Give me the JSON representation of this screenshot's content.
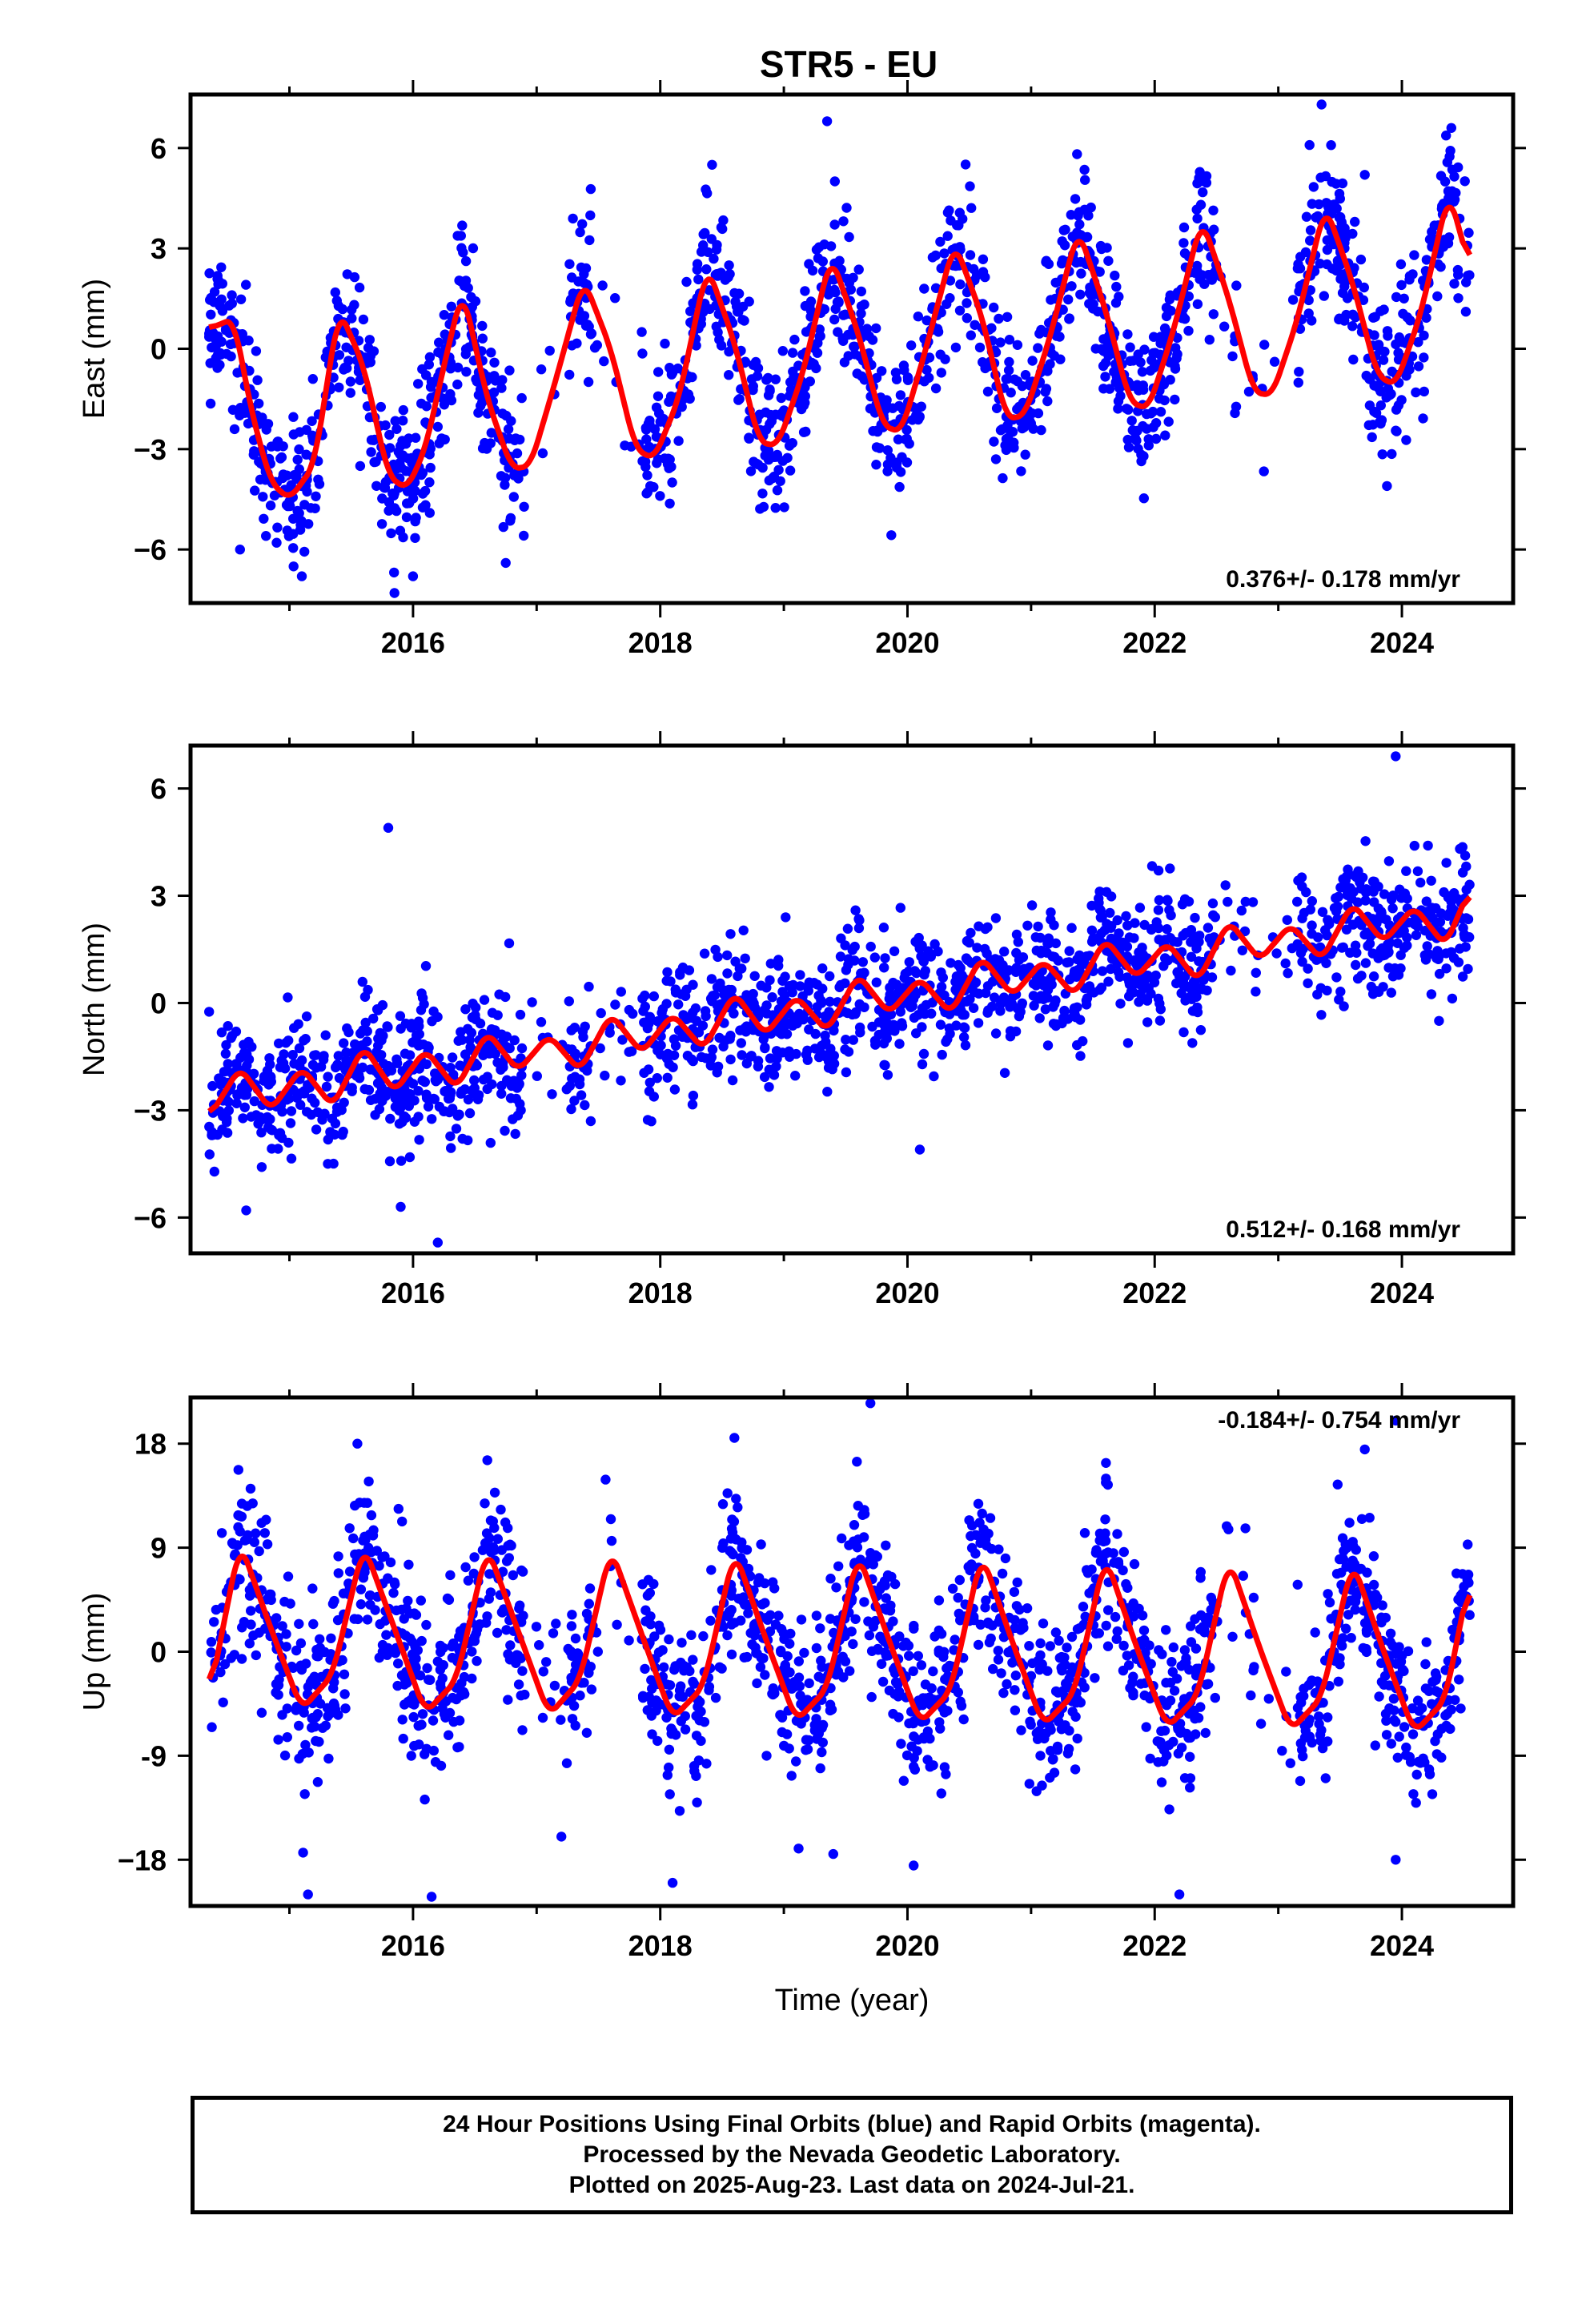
{
  "title": "STR5 - EU",
  "colors": {
    "points": "#0000ff",
    "model": "#ff0000",
    "frame": "#000000"
  },
  "chart_data": [
    {
      "type": "scatter",
      "component": "east",
      "ylabel": "East (mm)",
      "xlabel": "",
      "xlim": [
        2014.2,
        2024.9
      ],
      "ylim": [
        -7.6,
        7.6
      ],
      "yticks": [
        -6,
        -3,
        0,
        3,
        6
      ],
      "xticks": [
        2016,
        2018,
        2020,
        2022,
        2024
      ],
      "rate_text": "0.376+/- 0.178 mm/yr",
      "rate_position": "bottom-right",
      "model": {
        "series": "model",
        "x": [
          2014.35,
          2014.55,
          2014.7,
          2014.85,
          2015.0,
          2015.2,
          2015.4,
          2015.6,
          2015.8,
          2015.95,
          2016.1,
          2016.25,
          2016.4,
          2016.6,
          2016.8,
          2016.95,
          2017.15,
          2017.38,
          2017.6,
          2017.8,
          2017.95,
          2018.15,
          2018.38,
          2018.6,
          2018.8,
          2018.95,
          2019.15,
          2019.38,
          2019.6,
          2019.8,
          2019.95,
          2020.15,
          2020.38,
          2020.6,
          2020.8,
          2020.95,
          2021.15,
          2021.38,
          2021.6,
          2021.8,
          2021.95,
          2022.15,
          2022.38,
          2022.6,
          2022.8,
          2022.95,
          2023.15,
          2023.38,
          2023.6,
          2023.8,
          2023.95,
          2024.15,
          2024.38,
          2024.55
        ],
        "y": [
          0.6,
          0.9,
          -2.0,
          -4.0,
          -4.5,
          -3.5,
          1.2,
          -0.5,
          -3.8,
          -4.2,
          -3.0,
          -0.5,
          1.8,
          -1.5,
          -3.6,
          -3.5,
          -1.0,
          2.1,
          0.0,
          -3.0,
          -3.3,
          -1.5,
          2.5,
          0.2,
          -2.8,
          -2.9,
          -0.8,
          2.8,
          0.5,
          -2.3,
          -2.5,
          0.0,
          3.2,
          1.0,
          -2.1,
          -2.0,
          0.3,
          3.6,
          1.2,
          -1.6,
          -1.8,
          0.5,
          3.9,
          1.5,
          -1.3,
          -1.4,
          0.8,
          4.3,
          2.0,
          -0.8,
          -1.1,
          1.0,
          4.7,
          2.4
        ]
      },
      "points": {
        "name": "24 Hour Positions",
        "trend": 0.376,
        "offset": 0.0,
        "scatter_sd": 1.1,
        "count": 1900,
        "outliers": [
          [
            2014.6,
            -6.0
          ],
          [
            2015.1,
            -6.8
          ],
          [
            2015.85,
            -7.3
          ],
          [
            2016.0,
            -6.8
          ],
          [
            2016.75,
            -6.4
          ],
          [
            2019.35,
            6.8
          ],
          [
            2023.35,
            7.3
          ],
          [
            2023.7,
            5.2
          ],
          [
            2024.4,
            6.6
          ]
        ]
      }
    },
    {
      "type": "scatter",
      "component": "north",
      "ylabel": "North (mm)",
      "xlabel": "",
      "xlim": [
        2014.2,
        2024.9
      ],
      "ylim": [
        -7.0,
        7.2
      ],
      "yticks": [
        -6,
        -3,
        0,
        3,
        6
      ],
      "xticks": [
        2016,
        2018,
        2020,
        2022,
        2024
      ],
      "rate_text": "0.512+/- 0.168 mm/yr",
      "rate_position": "bottom-right",
      "model": {
        "series": "model",
        "x": [
          2014.35,
          2014.6,
          2014.85,
          2015.1,
          2015.35,
          2015.6,
          2015.85,
          2016.1,
          2016.35,
          2016.6,
          2016.85,
          2017.1,
          2017.35,
          2017.6,
          2017.85,
          2018.1,
          2018.35,
          2018.6,
          2018.85,
          2019.1,
          2019.35,
          2019.6,
          2019.85,
          2020.1,
          2020.35,
          2020.6,
          2020.85,
          2021.1,
          2021.35,
          2021.6,
          2021.85,
          2022.1,
          2022.35,
          2022.6,
          2022.85,
          2023.1,
          2023.35,
          2023.6,
          2023.85,
          2024.1,
          2024.35,
          2024.55
        ],
        "y": [
          -3.2,
          -1.8,
          -3.0,
          -1.8,
          -2.9,
          -1.2,
          -2.5,
          -1.3,
          -2.4,
          -0.8,
          -1.9,
          -0.9,
          -1.9,
          -0.3,
          -1.4,
          -0.3,
          -1.3,
          0.3,
          -0.9,
          0.2,
          -0.8,
          0.8,
          -0.3,
          0.7,
          -0.3,
          1.3,
          0.2,
          1.2,
          0.2,
          1.8,
          0.7,
          1.7,
          0.6,
          2.3,
          1.2,
          2.2,
          1.2,
          2.8,
          1.7,
          2.7,
          1.6,
          3.2
        ]
      },
      "points": {
        "name": "24 Hour Positions",
        "trend": 0.512,
        "offset": 0.0,
        "scatter_sd": 0.9,
        "count": 1900,
        "outliers": [
          [
            2015.8,
            4.9
          ],
          [
            2016.2,
            -6.7
          ],
          [
            2014.65,
            -5.8
          ],
          [
            2015.9,
            -5.7
          ],
          [
            2020.1,
            -4.1
          ],
          [
            2023.95,
            6.9
          ],
          [
            2024.3,
            -0.5
          ]
        ]
      }
    },
    {
      "type": "scatter",
      "component": "up",
      "ylabel": "Up (mm)",
      "xlabel": "Time (year)",
      "xlim": [
        2014.2,
        2024.9
      ],
      "ylim": [
        -22.0,
        22.0
      ],
      "yticks": [
        -18,
        -9,
        0,
        9,
        18
      ],
      "yticklabels": [
        "−18",
        "-9",
        "0",
        "9",
        "18"
      ],
      "xticks": [
        2016,
        2018,
        2020,
        2022,
        2024
      ],
      "rate_text": "-0.184+/- 0.754 mm/yr",
      "rate_position": "top-right",
      "model": {
        "series": "model",
        "x": [
          2014.35,
          2014.6,
          2014.85,
          2015.1,
          2015.35,
          2015.6,
          2015.85,
          2016.1,
          2016.35,
          2016.6,
          2016.85,
          2017.1,
          2017.35,
          2017.6,
          2017.85,
          2018.1,
          2018.35,
          2018.6,
          2018.85,
          2019.1,
          2019.35,
          2019.6,
          2019.85,
          2020.1,
          2020.35,
          2020.6,
          2020.85,
          2021.1,
          2021.35,
          2021.6,
          2021.85,
          2022.1,
          2022.35,
          2022.6,
          2022.85,
          2023.1,
          2023.35,
          2023.6,
          2023.85,
          2024.1,
          2024.35,
          2024.55
        ],
        "y": [
          -4.0,
          9.5,
          2.0,
          -5.0,
          -2.0,
          9.3,
          2.0,
          -5.3,
          -2.5,
          9.1,
          1.8,
          -5.5,
          -2.5,
          9.0,
          1.5,
          -5.8,
          -3.0,
          8.8,
          1.2,
          -6.0,
          -3.2,
          8.6,
          1.0,
          -6.2,
          -3.4,
          8.5,
          0.8,
          -6.4,
          -3.6,
          8.3,
          0.5,
          -6.6,
          -3.8,
          8.1,
          0.3,
          -6.8,
          -4.0,
          7.9,
          0.1,
          -7.0,
          -4.2,
          6.5
        ]
      },
      "points": {
        "name": "24 Hour Positions",
        "trend": -0.184,
        "offset": 0.0,
        "scatter_sd": 3.6,
        "count": 1900,
        "outliers": [
          [
            2015.15,
            -21.0
          ],
          [
            2016.15,
            -21.2
          ],
          [
            2022.2,
            -21.0
          ],
          [
            2019.7,
            21.5
          ],
          [
            2023.95,
            20.0
          ],
          [
            2015.55,
            18.0
          ],
          [
            2017.2,
            -16.0
          ],
          [
            2018.1,
            -20.0
          ],
          [
            2018.6,
            18.5
          ],
          [
            2020.05,
            -18.5
          ],
          [
            2023.7,
            17.5
          ],
          [
            2023.95,
            -18.0
          ],
          [
            2019.4,
            -17.5
          ]
        ]
      }
    }
  ],
  "footer": {
    "line1": "24 Hour Positions Using Final Orbits (blue) and Rapid Orbits (magenta).",
    "line2": "Processed by the Nevada Geodetic Laboratory.",
    "line3": "Plotted on 2025-Aug-23. Last data on 2024-Jul-21."
  }
}
